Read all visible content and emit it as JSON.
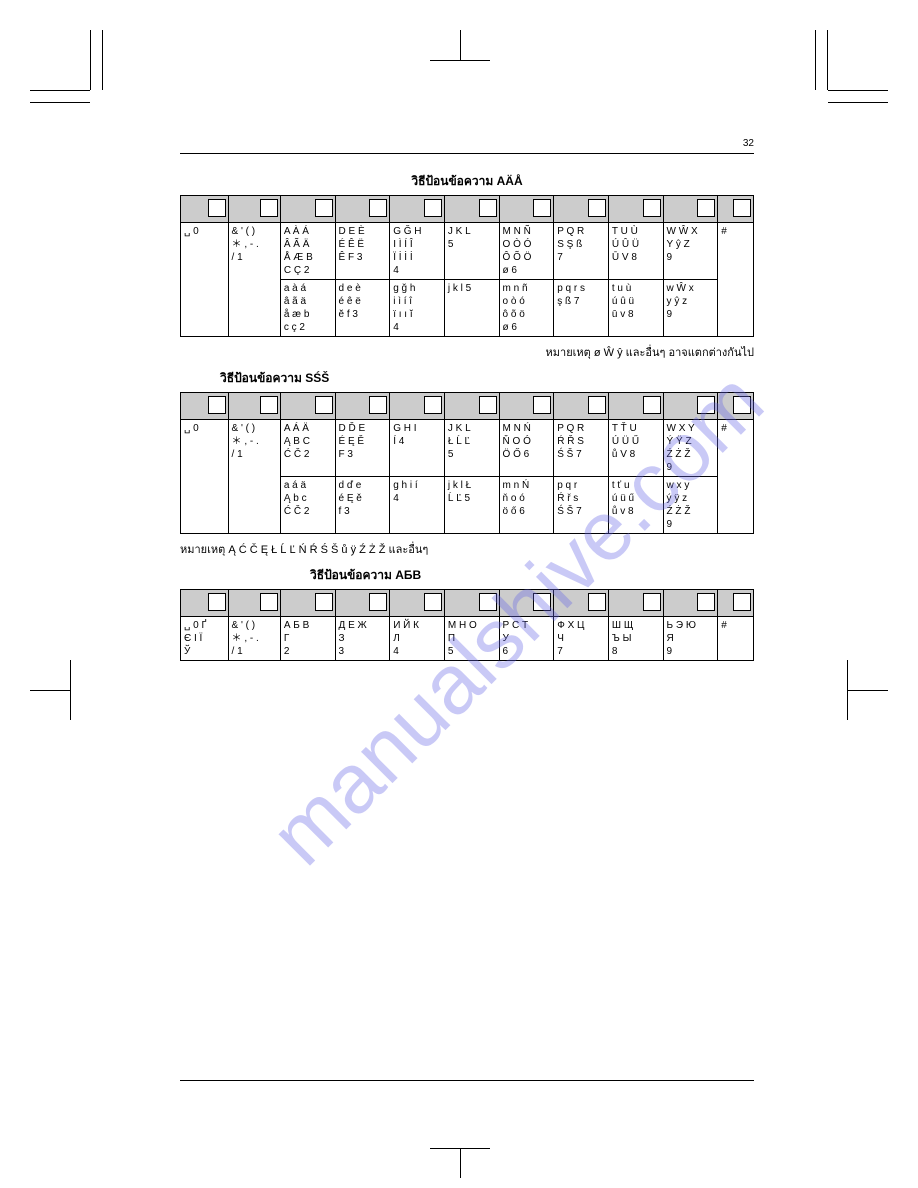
{
  "page_number": "32",
  "watermark": "manualshive.com",
  "section1": {
    "title": "วิธีป้อนข้อความ AÄÅ",
    "headers_count": 11,
    "col_first_row": [
      "␣ 0"
    ],
    "col_1_row": [
      "& ' ( )\n＊ , - .\n/ 1"
    ],
    "cells_row1": [
      "A À Á\nÂ Ã Ä\nÅ Æ B\nC Ç 2",
      "D E È\nÉ Ê Ë\nÊ F 3",
      "G Ğ H\nI Ì Í Î\nÏ İ İ İ\n4",
      "J K L\n5",
      "M N Ñ\nO Ò Ó\nÔ Õ Ö\nø 6",
      "P Q R\nS Ş ß\n7",
      "T U Ù\nÚ Û Ü\nŪ V 8",
      "W Ŵ X\nY ŷ Z\n9",
      "#"
    ],
    "cells_row2": [
      "a à á\nâ ã ä\nå æ b\nc ç 2",
      "d e è\né ê ë\nĕ f 3",
      "g ğ h\ni ì í î\nï ı ı ĭ\n4",
      "j k l 5",
      "m n ñ\no ò ó\nô õ ö\nø 6",
      "p q r s\nş ß 7",
      "t u ù\nú û ü\nū v 8",
      "w Ŵ x\ny ŷ z\n9",
      ""
    ],
    "note": "หมายเหตุ ø Ŵ ŷ และอื่นๆ อาจแตกต่างกันไป"
  },
  "section2": {
    "title": "วิธีป้อนข้อความ SŚŠ",
    "col_first_row": [
      "␣ 0"
    ],
    "col_1_row": [
      "& ' ( )\n＊ , - .\n/ 1"
    ],
    "cells_row1": [
      "A Á Ä\nĄ B C\nĆ Č 2",
      "D Ď E\nÉ Ę Ě\nF 3",
      "G H I\nÍ 4",
      "J K L\nŁ Ĺ Ľ\n5",
      "M N Ń\nŇ O Ó\nÖ Ő 6",
      "P Q R\nŔ Ř S\nŚ Š 7",
      "T Ť U\nÚ Ü Ű\nů V 8",
      "W X Y\nÝ Ÿ Z\nŹ Ż Ž\n9",
      "#"
    ],
    "cells_row2": [
      "a á ä\nĄ b c\nĆ Č 2",
      "d ď e\né Ę ě\nf 3",
      "g h i í\n4",
      "j k l Ł\nĹ Ľ 5",
      "m n Ń\nň o ó\nö ő 6",
      "p q r\nŔ ř s\nŚ Š 7",
      "t ť u\nú ü ű\nů v 8",
      "w x y\ný ÿ z\nŹ Ż Ž\n9",
      ""
    ],
    "note": "หมายเหตุ Ą Ć Č Ę Ł Ĺ Ľ Ń Ŕ Ś Š ů ÿ Ź Ż Ž และอื่นๆ"
  },
  "section3": {
    "title": "วิธีป้อนข้อความ АБВ",
    "col_first_row": [
      "␣ 0 Ґ\nЄ І Ї\nЎ"
    ],
    "col_1_row": [
      "& ' ( )\n＊ , - .\n/ 1"
    ],
    "cells_row1": [
      "А Б В\nГ\n2",
      "Д Е Ж\nЗ\n3",
      "И Й К\nЛ\n4",
      "М Н О\nП\n5",
      "Р С Т\nУ\n6",
      "Ф Х Ц\nЧ\n7",
      "Ш Щ\nЪ Ы\n8",
      "Ь Э Ю\nЯ\n9",
      "#"
    ]
  },
  "colors": {
    "header_bg": "#cccccc",
    "border": "#000000",
    "background": "#ffffff",
    "watermark": "rgba(100,100,230,0.35)"
  }
}
